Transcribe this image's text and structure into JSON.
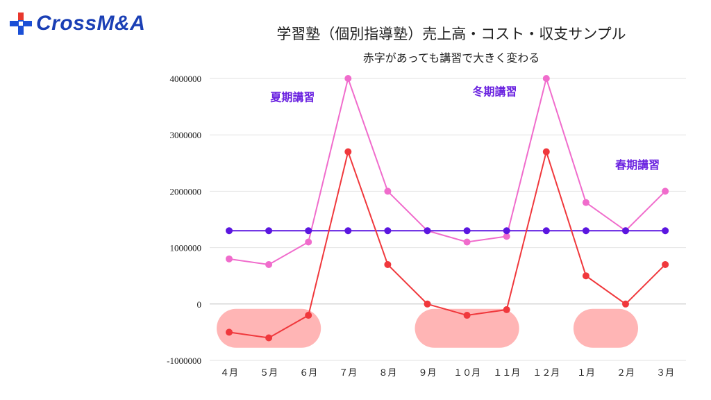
{
  "logo": {
    "text": "CrossM&A"
  },
  "chart_data": {
    "type": "line",
    "title": "学習塾（個別指導塾）売上高・コスト・収支サンプル",
    "subtitle": "赤字があっても講習で大きく変わる",
    "categories": [
      "４月",
      "５月",
      "６月",
      "７月",
      "８月",
      "９月",
      "１０月",
      "１１月",
      "１２月",
      "１月",
      "２月",
      "３月"
    ],
    "ylim": [
      -1000000,
      4000000
    ],
    "yticks": [
      -1000000,
      0,
      1000000,
      2000000,
      3000000,
      4000000
    ],
    "ytick_labels": [
      "-1000000",
      "0",
      "1000000",
      "2000000",
      "3000000",
      "4000000"
    ],
    "grid": true,
    "series": [
      {
        "values": [
          800000,
          700000,
          1100000,
          4000000,
          2000000,
          1300000,
          1100000,
          1200000,
          4000000,
          1800000,
          1300000,
          2000000
        ],
        "color": "#f06ccc"
      },
      {
        "values": [
          1300000,
          1300000,
          1300000,
          1300000,
          1300000,
          1300000,
          1300000,
          1300000,
          1300000,
          1300000,
          1300000,
          1300000
        ],
        "color": "#5b16e0"
      },
      {
        "values": [
          -500000,
          -600000,
          -200000,
          2700000,
          700000,
          0,
          -200000,
          -100000,
          2700000,
          500000,
          0,
          700000
        ],
        "color": "#f0383c"
      }
    ],
    "annotations": [
      {
        "text": "夏期講習",
        "category_index": 1.6,
        "y": 3600000
      },
      {
        "text": "冬期講習",
        "category_index": 6.7,
        "y": 3700000
      },
      {
        "text": "春期講習",
        "category_index": 10.3,
        "y": 2400000
      }
    ],
    "annotation_color": "#6a22e0",
    "loss_highlights": [
      {
        "from": 0,
        "to": 2
      },
      {
        "from": 5,
        "to": 7
      },
      {
        "from": 9,
        "to": 10
      }
    ],
    "highlight_color": "#ff9c9c"
  }
}
